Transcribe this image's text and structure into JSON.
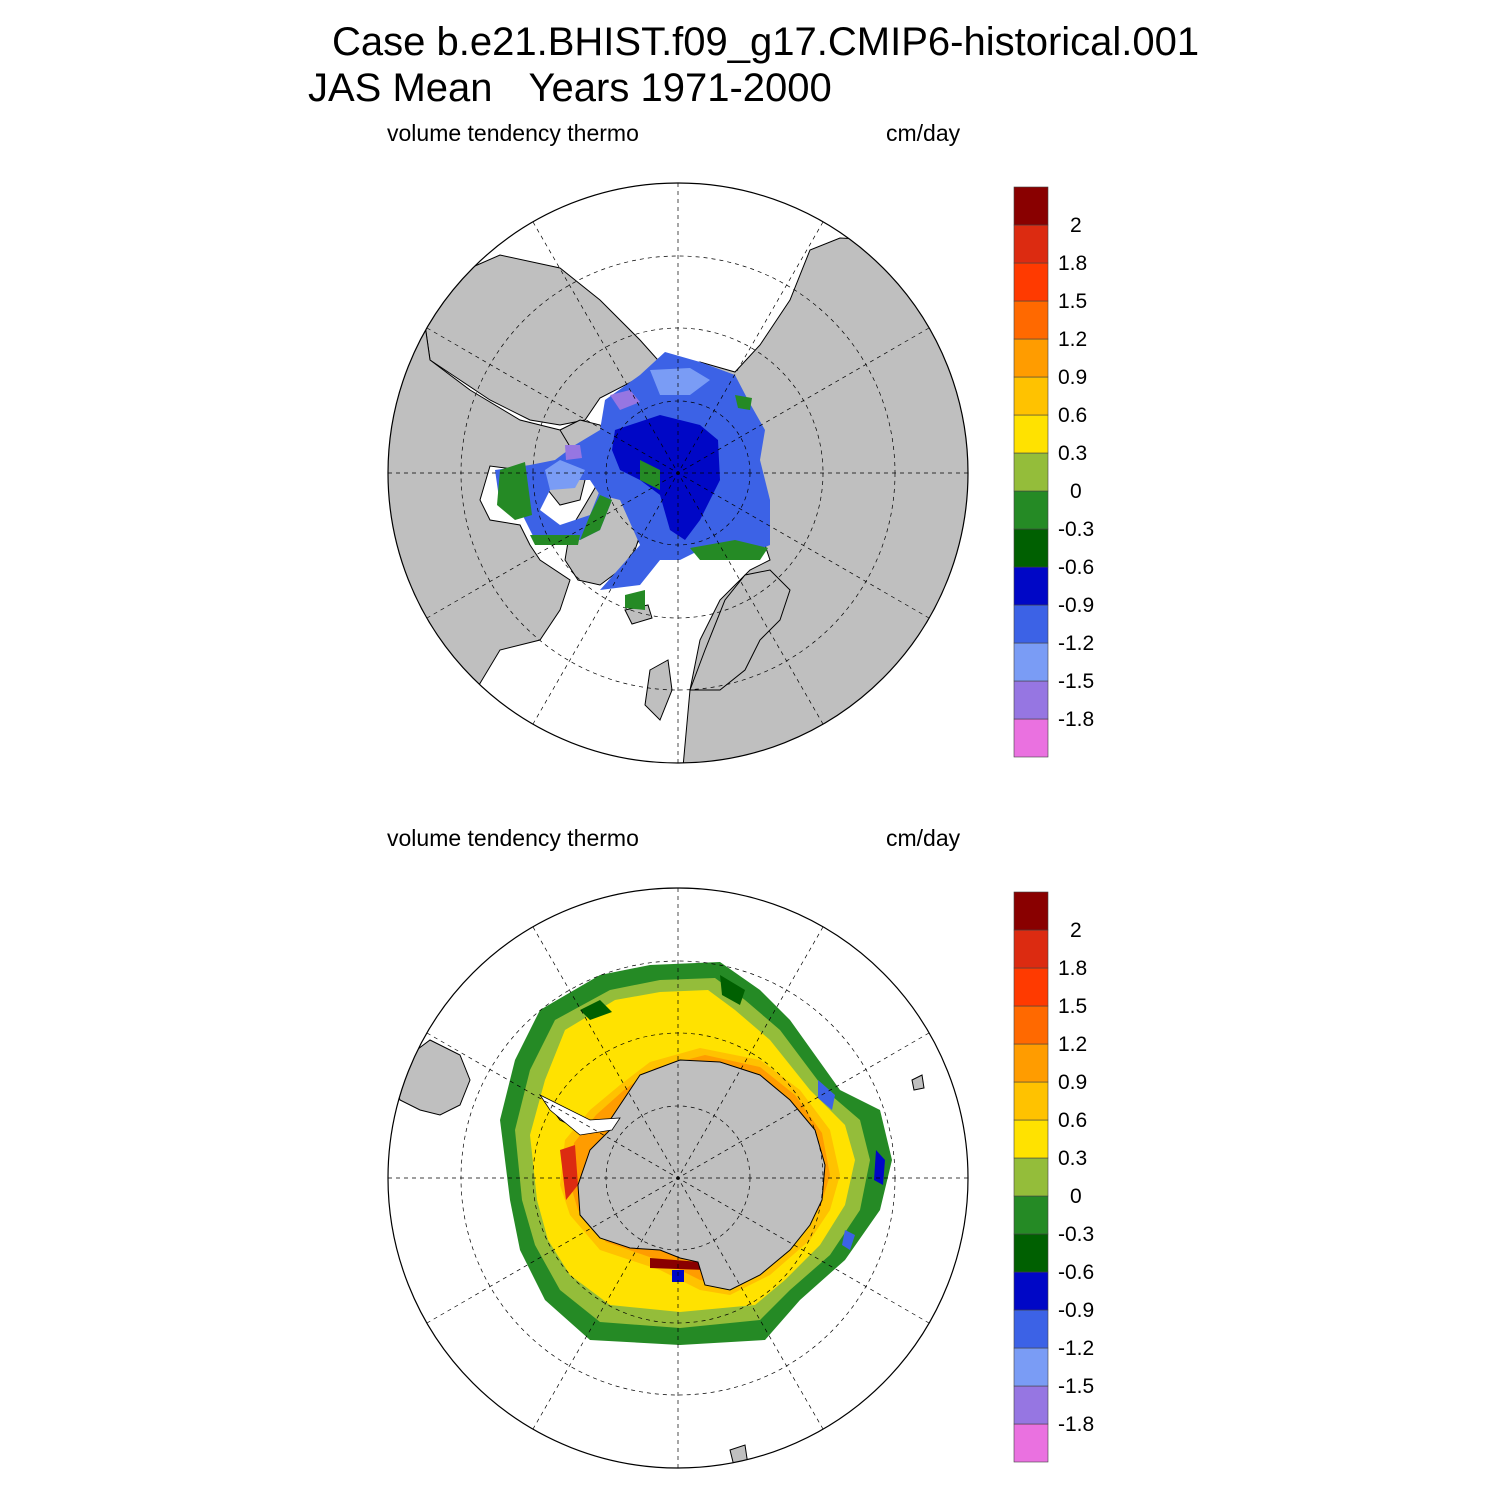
{
  "title": {
    "case": "Case b.e21.BHIST.f09_g17.CMIP6-historical.001",
    "season": "JAS Mean",
    "years": "Years 1971-2000"
  },
  "panels": [
    {
      "id": "north",
      "hemisphere": "Northern Hemisphere",
      "left_label": "volume tendency thermo",
      "right_label": "cm/day"
    },
    {
      "id": "south",
      "hemisphere": "Southern Hemisphere",
      "left_label": "volume tendency thermo",
      "right_label": "cm/day"
    }
  ],
  "colorbar": {
    "colors": [
      "#ea71e0",
      "#9676e2",
      "#7a9cf5",
      "#3c62e6",
      "#0007c6",
      "#006001",
      "#258a25",
      "#94bd3a",
      "#ffe200",
      "#ffc200",
      "#ff9c00",
      "#ff6900",
      "#ff3a00",
      "#dc2b11",
      "#890000"
    ],
    "labels": [
      "-1.8",
      "-1.5",
      "-1.2",
      "-0.9",
      "-0.6",
      "-0.3",
      "0",
      "0.3",
      "0.6",
      "0.9",
      "1.2",
      "1.5",
      "1.8",
      "2"
    ]
  },
  "map_colors": {
    "land": "#bfbfbf",
    "ocean": "#ffffff"
  }
}
